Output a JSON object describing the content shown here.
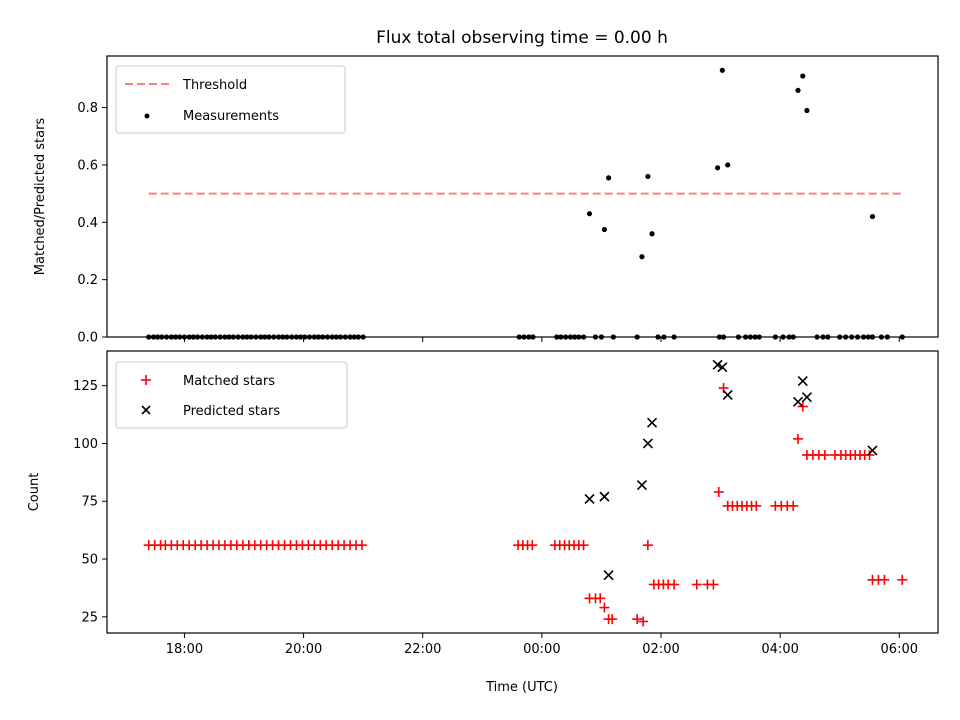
{
  "figure": {
    "title": "Flux total observing time = 0.00 h"
  },
  "chart_data": [
    {
      "type": "scatter",
      "panel": "top",
      "xlabel": "",
      "ylabel": "Matched/Predicted stars",
      "xlim": [
        -7.3,
        6.65
      ],
      "ylim": [
        0.0,
        0.98
      ],
      "yticks": [
        0.0,
        0.2,
        0.4,
        0.6,
        0.8
      ],
      "ytick_labels": [
        "0.0",
        "0.2",
        "0.4",
        "0.6",
        "0.8"
      ],
      "xticks": [
        -6,
        -4,
        -2,
        0,
        2,
        4,
        6
      ],
      "show_xtick_labels": false,
      "grid": false,
      "legend_position": "top-left",
      "threshold": {
        "name": "Threshold",
        "value": 0.5,
        "x_range": [
          -6.6,
          6.05
        ],
        "color": "#ff7f7f"
      },
      "series": [
        {
          "name": "Measurements",
          "color": "#000000",
          "marker": "dot",
          "points": [
            [
              -6.6,
              0
            ],
            [
              -6.52,
              0
            ],
            [
              -6.45,
              0
            ],
            [
              -6.38,
              0
            ],
            [
              -6.3,
              0
            ],
            [
              -6.22,
              0
            ],
            [
              -6.15,
              0
            ],
            [
              -6.08,
              0
            ],
            [
              -6.0,
              0
            ],
            [
              -5.92,
              0
            ],
            [
              -5.85,
              0
            ],
            [
              -5.78,
              0
            ],
            [
              -5.7,
              0
            ],
            [
              -5.62,
              0
            ],
            [
              -5.55,
              0
            ],
            [
              -5.48,
              0
            ],
            [
              -5.4,
              0
            ],
            [
              -5.32,
              0
            ],
            [
              -5.25,
              0
            ],
            [
              -5.18,
              0
            ],
            [
              -5.1,
              0
            ],
            [
              -5.02,
              0
            ],
            [
              -4.95,
              0
            ],
            [
              -4.88,
              0
            ],
            [
              -4.8,
              0
            ],
            [
              -4.72,
              0
            ],
            [
              -4.65,
              0
            ],
            [
              -4.58,
              0
            ],
            [
              -4.5,
              0
            ],
            [
              -4.42,
              0
            ],
            [
              -4.35,
              0
            ],
            [
              -4.28,
              0
            ],
            [
              -4.2,
              0
            ],
            [
              -4.12,
              0
            ],
            [
              -4.05,
              0
            ],
            [
              -3.98,
              0
            ],
            [
              -3.9,
              0
            ],
            [
              -3.82,
              0
            ],
            [
              -3.75,
              0
            ],
            [
              -3.68,
              0
            ],
            [
              -3.6,
              0
            ],
            [
              -3.52,
              0
            ],
            [
              -3.45,
              0
            ],
            [
              -3.38,
              0
            ],
            [
              -3.3,
              0
            ],
            [
              -3.22,
              0
            ],
            [
              -3.15,
              0
            ],
            [
              -3.08,
              0
            ],
            [
              -3.0,
              0
            ],
            [
              -0.38,
              0
            ],
            [
              -0.3,
              0
            ],
            [
              -0.22,
              0
            ],
            [
              -0.15,
              0
            ],
            [
              0.25,
              0
            ],
            [
              0.32,
              0
            ],
            [
              0.4,
              0
            ],
            [
              0.48,
              0
            ],
            [
              0.55,
              0
            ],
            [
              0.62,
              0
            ],
            [
              0.7,
              0
            ],
            [
              0.9,
              0
            ],
            [
              1.0,
              0
            ],
            [
              1.2,
              0
            ],
            [
              1.6,
              0
            ],
            [
              1.95,
              0
            ],
            [
              2.05,
              0
            ],
            [
              2.22,
              0
            ],
            [
              2.98,
              0
            ],
            [
              3.05,
              0
            ],
            [
              3.3,
              0
            ],
            [
              3.42,
              0
            ],
            [
              3.5,
              0
            ],
            [
              3.58,
              0
            ],
            [
              3.65,
              0
            ],
            [
              3.92,
              0
            ],
            [
              4.05,
              0
            ],
            [
              4.15,
              0
            ],
            [
              4.22,
              0
            ],
            [
              4.62,
              0
            ],
            [
              4.72,
              0
            ],
            [
              4.8,
              0
            ],
            [
              5.0,
              0
            ],
            [
              5.1,
              0
            ],
            [
              5.2,
              0
            ],
            [
              5.3,
              0
            ],
            [
              5.4,
              0
            ],
            [
              5.48,
              0
            ],
            [
              5.55,
              0
            ],
            [
              5.7,
              0
            ],
            [
              5.8,
              0
            ],
            [
              6.05,
              0
            ],
            [
              0.8,
              0.43
            ],
            [
              1.05,
              0.375
            ],
            [
              1.12,
              0.555
            ],
            [
              1.68,
              0.28
            ],
            [
              1.78,
              0.56
            ],
            [
              1.85,
              0.36
            ],
            [
              2.95,
              0.59
            ],
            [
              3.03,
              0.93
            ],
            [
              3.12,
              0.6
            ],
            [
              4.3,
              0.86
            ],
            [
              4.38,
              0.91
            ],
            [
              4.45,
              0.79
            ],
            [
              5.55,
              0.42
            ]
          ]
        }
      ]
    },
    {
      "type": "scatter",
      "panel": "bottom",
      "xlabel": "Time (UTC)",
      "ylabel": "Count",
      "xlim": [
        -7.3,
        6.65
      ],
      "ylim": [
        18,
        140
      ],
      "yticks": [
        25,
        50,
        75,
        100,
        125
      ],
      "ytick_labels": [
        "25",
        "50",
        "75",
        "100",
        "125"
      ],
      "xticks": [
        -6,
        -4,
        -2,
        0,
        2,
        4,
        6
      ],
      "xtick_labels": [
        "18:00",
        "20:00",
        "22:00",
        "00:00",
        "02:00",
        "04:00",
        "06:00"
      ],
      "grid": false,
      "legend_position": "top-left",
      "series": [
        {
          "name": "Matched stars",
          "color": "#ff0000",
          "marker": "plus",
          "points": [
            [
              -6.6,
              56
            ],
            [
              -6.5,
              56
            ],
            [
              -6.4,
              56
            ],
            [
              -6.32,
              56
            ],
            [
              -6.22,
              56
            ],
            [
              -6.12,
              56
            ],
            [
              -6.02,
              56
            ],
            [
              -5.92,
              56
            ],
            [
              -5.82,
              56
            ],
            [
              -5.72,
              56
            ],
            [
              -5.62,
              56
            ],
            [
              -5.52,
              56
            ],
            [
              -5.42,
              56
            ],
            [
              -5.32,
              56
            ],
            [
              -5.22,
              56
            ],
            [
              -5.12,
              56
            ],
            [
              -5.02,
              56
            ],
            [
              -4.92,
              56
            ],
            [
              -4.82,
              56
            ],
            [
              -4.72,
              56
            ],
            [
              -4.62,
              56
            ],
            [
              -4.52,
              56
            ],
            [
              -4.42,
              56
            ],
            [
              -4.32,
              56
            ],
            [
              -4.22,
              56
            ],
            [
              -4.12,
              56
            ],
            [
              -4.02,
              56
            ],
            [
              -3.92,
              56
            ],
            [
              -3.82,
              56
            ],
            [
              -3.72,
              56
            ],
            [
              -3.62,
              56
            ],
            [
              -3.52,
              56
            ],
            [
              -3.42,
              56
            ],
            [
              -3.32,
              56
            ],
            [
              -3.22,
              56
            ],
            [
              -3.12,
              56
            ],
            [
              -3.02,
              56
            ],
            [
              -0.4,
              56
            ],
            [
              -0.32,
              56
            ],
            [
              -0.24,
              56
            ],
            [
              -0.16,
              56
            ],
            [
              0.22,
              56
            ],
            [
              0.3,
              56
            ],
            [
              0.38,
              56
            ],
            [
              0.46,
              56
            ],
            [
              0.54,
              56
            ],
            [
              0.62,
              56
            ],
            [
              0.7,
              56
            ],
            [
              0.8,
              33
            ],
            [
              0.9,
              33
            ],
            [
              0.98,
              33
            ],
            [
              1.05,
              29
            ],
            [
              1.12,
              24
            ],
            [
              1.18,
              24
            ],
            [
              1.6,
              24
            ],
            [
              1.7,
              23
            ],
            [
              1.78,
              56
            ],
            [
              1.88,
              39
            ],
            [
              1.96,
              39
            ],
            [
              2.04,
              39
            ],
            [
              2.12,
              39
            ],
            [
              2.22,
              39
            ],
            [
              2.6,
              39
            ],
            [
              2.78,
              39
            ],
            [
              2.88,
              39
            ],
            [
              2.97,
              79
            ],
            [
              3.05,
              124
            ],
            [
              3.12,
              73
            ],
            [
              3.2,
              73
            ],
            [
              3.28,
              73
            ],
            [
              3.36,
              73
            ],
            [
              3.44,
              73
            ],
            [
              3.52,
              73
            ],
            [
              3.6,
              73
            ],
            [
              3.92,
              73
            ],
            [
              4.02,
              73
            ],
            [
              4.12,
              73
            ],
            [
              4.22,
              73
            ],
            [
              4.3,
              102
            ],
            [
              4.38,
              116
            ],
            [
              4.45,
              95
            ],
            [
              4.55,
              95
            ],
            [
              4.65,
              95
            ],
            [
              4.75,
              95
            ],
            [
              4.92,
              95
            ],
            [
              5.02,
              95
            ],
            [
              5.1,
              95
            ],
            [
              5.18,
              95
            ],
            [
              5.26,
              95
            ],
            [
              5.34,
              95
            ],
            [
              5.42,
              95
            ],
            [
              5.5,
              95
            ],
            [
              5.55,
              41
            ],
            [
              5.65,
              41
            ],
            [
              5.75,
              41
            ],
            [
              6.05,
              41
            ]
          ]
        },
        {
          "name": "Predicted stars",
          "color": "#000000",
          "marker": "x",
          "points": [
            [
              0.8,
              76
            ],
            [
              1.05,
              77
            ],
            [
              1.12,
              43
            ],
            [
              1.68,
              82
            ],
            [
              1.78,
              100
            ],
            [
              1.85,
              109
            ],
            [
              2.95,
              134
            ],
            [
              3.03,
              133
            ],
            [
              3.12,
              121
            ],
            [
              4.3,
              118
            ],
            [
              4.38,
              127
            ],
            [
              4.45,
              120
            ],
            [
              5.55,
              97
            ]
          ]
        }
      ]
    }
  ]
}
